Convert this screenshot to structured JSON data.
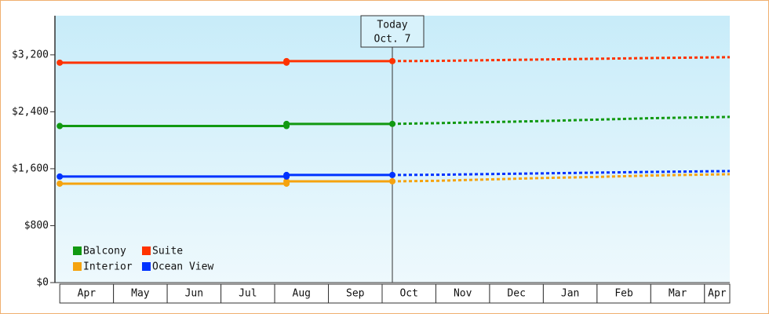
{
  "chart_data": {
    "type": "line",
    "categories": [
      "Apr",
      "May",
      "Jun",
      "Jul",
      "Aug",
      "Sep",
      "Oct",
      "Nov",
      "Dec",
      "Jan",
      "Feb",
      "Mar",
      "Apr"
    ],
    "xlim": [
      -0.09,
      12.47
    ],
    "ylim": [
      0,
      3750
    ],
    "yticks": [
      {
        "value": 0,
        "label": "$0"
      },
      {
        "value": 800,
        "label": "$800"
      },
      {
        "value": 1600,
        "label": "$1,600"
      },
      {
        "value": 2400,
        "label": "$2,400"
      },
      {
        "value": 3200,
        "label": "$3,200"
      }
    ],
    "annotation": {
      "x": 6.19,
      "lines": [
        "Today",
        "Oct. 7"
      ]
    },
    "forecast_x": [
      6.19,
      7,
      8,
      9,
      10,
      11,
      12.47
    ],
    "series": [
      {
        "name": "Balcony",
        "color": "#119911",
        "x": [
          0,
          4.22,
          4.22,
          6.19
        ],
        "values": [
          2200,
          2200,
          2230,
          2230
        ],
        "forecast_values": [
          2230,
          2240,
          2255,
          2270,
          2290,
          2310,
          2328
        ]
      },
      {
        "name": "Suite",
        "color": "#ff3300",
        "x": [
          0,
          4.22,
          4.22,
          6.19
        ],
        "values": [
          3090,
          3090,
          3112,
          3112
        ],
        "forecast_values": [
          3112,
          3115,
          3125,
          3135,
          3145,
          3155,
          3167
        ]
      },
      {
        "name": "Interior",
        "color": "#f5a30f",
        "x": [
          0,
          4.22,
          4.22,
          6.19
        ],
        "values": [
          1390,
          1390,
          1423,
          1423
        ],
        "forecast_values": [
          1423,
          1430,
          1450,
          1470,
          1485,
          1505,
          1523
        ]
      },
      {
        "name": "Ocean View",
        "color": "#0033ff",
        "x": [
          0,
          4.22,
          4.22,
          6.19
        ],
        "values": [
          1490,
          1490,
          1512,
          1512
        ],
        "forecast_values": [
          1512,
          1515,
          1525,
          1535,
          1545,
          1555,
          1567
        ]
      }
    ]
  }
}
